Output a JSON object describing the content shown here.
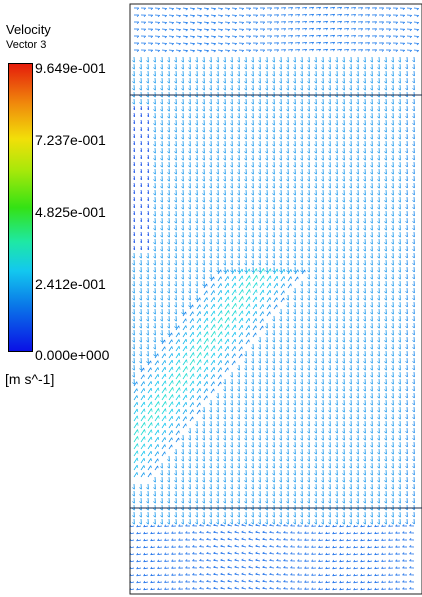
{
  "legend": {
    "title": "Velocity",
    "subtitle": "Vector 3",
    "units": "[m s^-1]",
    "ticks": [
      "9.649e-001",
      "7.237e-001",
      "4.825e-001",
      "2.412e-001",
      "0.000e+000"
    ]
  },
  "colors": {
    "high": "#e51d0b",
    "mid_high": "#f2df09",
    "mid": "#34e214",
    "mid_low": "#13c8ef",
    "low": "#0a10e6",
    "boundary_line": "#1a2a4a"
  }
}
